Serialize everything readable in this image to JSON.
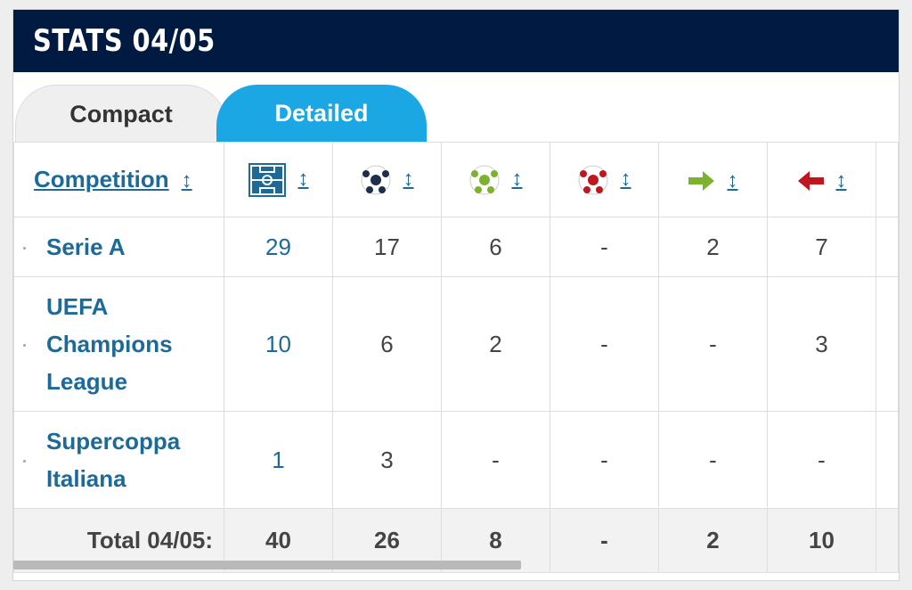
{
  "header": {
    "title": "STATS 04/05"
  },
  "tabs": [
    {
      "label": "Compact",
      "active": false
    },
    {
      "label": "Detailed",
      "active": true
    }
  ],
  "columns": {
    "competition": "Competition",
    "sort_arrow": "↕",
    "icons": [
      "pitch-appearances-icon",
      "ball-goals-icon",
      "green-ball-icon",
      "red-ball-icon",
      "substituted-in-icon",
      "substituted-out-icon"
    ]
  },
  "rows": [
    {
      "name": "Serie A",
      "values": [
        "29",
        "17",
        "6",
        "-",
        "2",
        "7"
      ]
    },
    {
      "name": "UEFA Champions League",
      "values": [
        "10",
        "6",
        "2",
        "-",
        "-",
        "3"
      ]
    },
    {
      "name": "Supercoppa Italiana",
      "values": [
        "1",
        "3",
        "-",
        "-",
        "-",
        "-"
      ]
    }
  ],
  "total": {
    "label": "Total 04/05:",
    "values": [
      "40",
      "26",
      "8",
      "-",
      "2",
      "10"
    ]
  },
  "colors": {
    "header_bg": "#001a42",
    "tab_active": "#1aa7e4",
    "link": "#1d6a99",
    "arrow_in": "#7bb32e",
    "arrow_out": "#c0161f"
  }
}
